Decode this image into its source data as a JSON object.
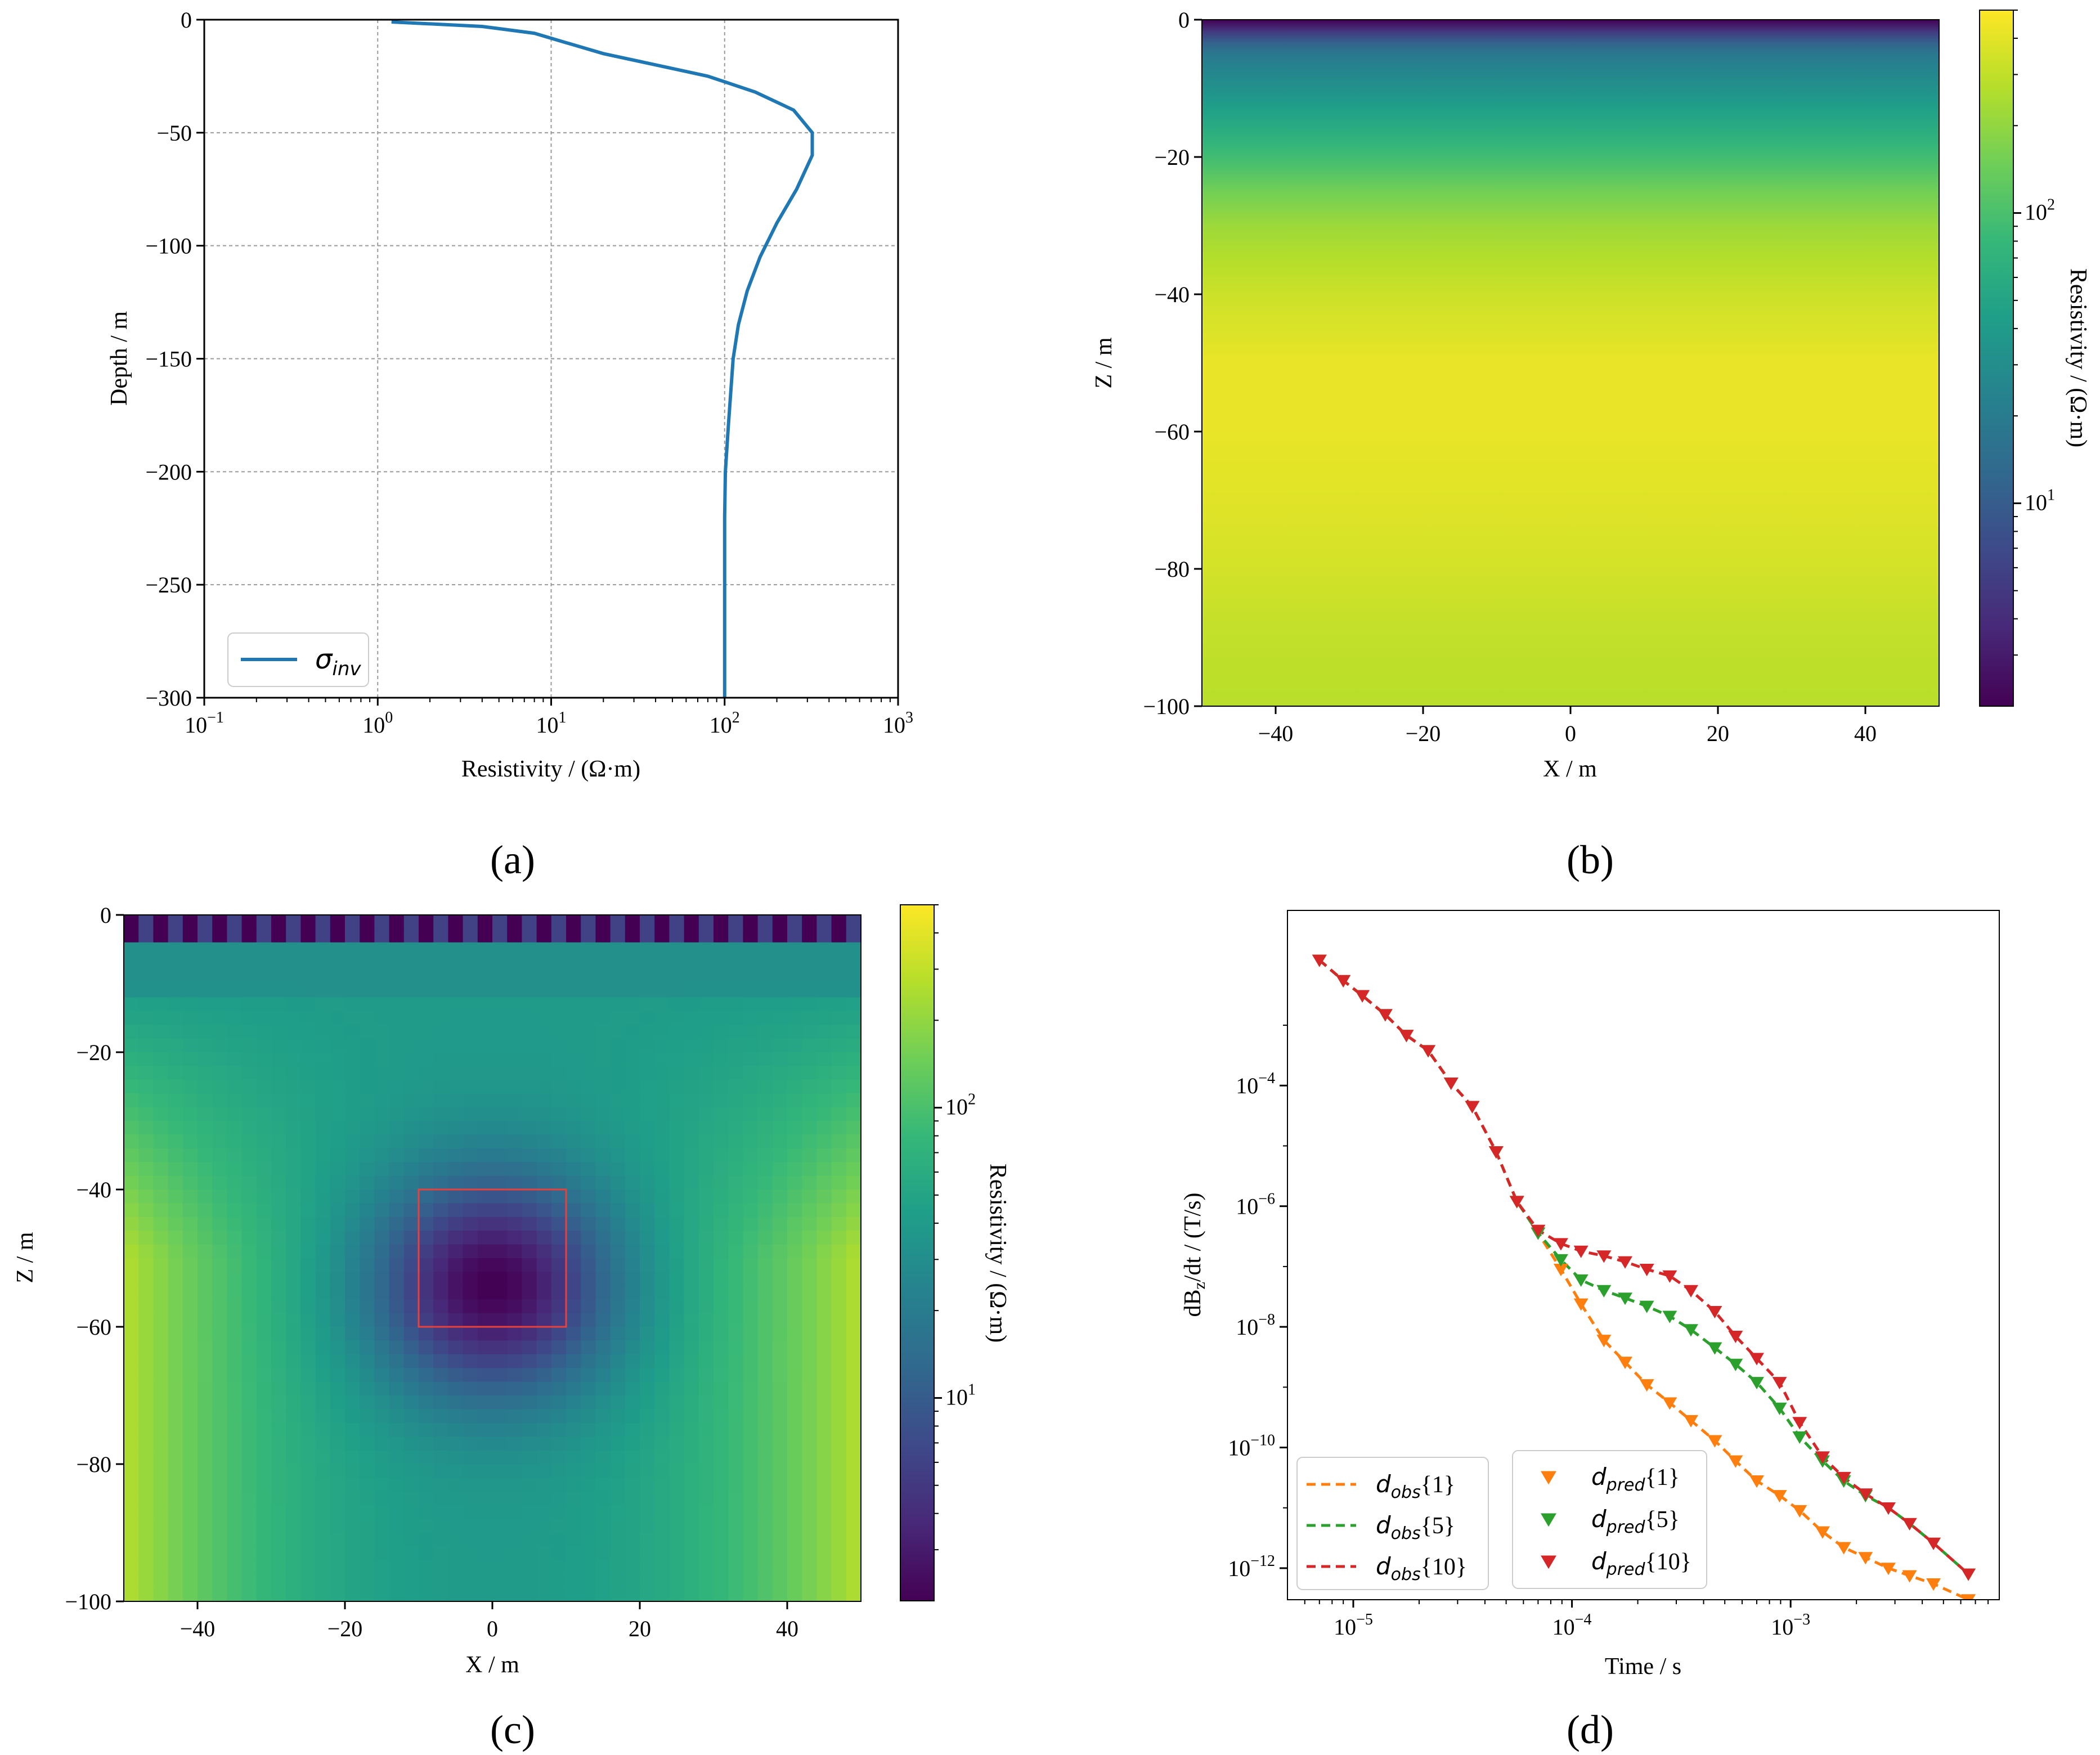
{
  "figure": {
    "panel_labels": [
      "(a)",
      "(b)",
      "(c)",
      "(d)"
    ]
  },
  "colors": {
    "inv_line": "#1f77b4",
    "obs1": "#ff7f0e",
    "obs5": "#2ca02c",
    "obs10": "#d62728",
    "box": "#e8403a",
    "grid": "#9a9a9a",
    "viridis": [
      "#440154",
      "#482878",
      "#3e4989",
      "#31688e",
      "#26828e",
      "#1f9e89",
      "#35b779",
      "#6ece58",
      "#b5de2b",
      "#fde725"
    ]
  },
  "chart_data": [
    {
      "id": "a",
      "type": "line",
      "xlabel": "Resistivity / (Ω·m)",
      "ylabel": "Depth / m",
      "xscale": "log",
      "xlim": [
        0.1,
        1000
      ],
      "ylim": [
        -300,
        0
      ],
      "xtick_exponents": [
        "-1",
        "0",
        "1",
        "2",
        "3"
      ],
      "yticks": [
        0,
        -50,
        -100,
        -150,
        -200,
        -250,
        -300
      ],
      "ytick_labels": [
        "0",
        "−50",
        "−100",
        "−150",
        "−200",
        "−250",
        "−300"
      ],
      "grid": true,
      "legend": "lower-left",
      "series": [
        {
          "name": "σ_inv",
          "legend_main": "σ",
          "legend_sub": "inv",
          "resistivity": [
            1.2,
            4,
            8,
            12,
            20,
            40,
            80,
            150,
            250,
            320,
            320,
            260,
            200,
            160,
            135,
            120,
            112,
            105,
            101,
            100,
            100,
            100,
            100
          ],
          "depth": [
            -1,
            -3,
            -6,
            -10,
            -15,
            -20,
            -25,
            -32,
            -40,
            -50,
            -60,
            -75,
            -90,
            -105,
            -120,
            -135,
            -150,
            -180,
            -200,
            -220,
            -250,
            -280,
            -300
          ]
        }
      ]
    },
    {
      "id": "b",
      "type": "heatmap",
      "xlabel": "X / m",
      "ylabel": "Z / m",
      "xlim": [
        -50,
        50
      ],
      "ylim": [
        -100,
        0
      ],
      "xticks": [
        -40,
        -20,
        0,
        20,
        40
      ],
      "xtick_labels": [
        "−40",
        "−20",
        "0",
        "20",
        "40"
      ],
      "yticks": [
        0,
        -20,
        -40,
        -60,
        -80,
        -100
      ],
      "ytick_labels": [
        "0",
        "−20",
        "−40",
        "−60",
        "−80",
        "−100"
      ],
      "colorbar_label": "Resistivity / (Ω·m)",
      "colorbar_scale": "log",
      "colorbar_range": [
        2,
        500
      ],
      "colorbar_tick_exponents": [
        "1",
        "2"
      ],
      "colorbar_tick_values": [
        10,
        100
      ],
      "depth_profile": {
        "depth": [
          0,
          -2,
          -4,
          -6,
          -10,
          -15,
          -20,
          -25,
          -30,
          -40,
          -50,
          -60,
          -70,
          -80,
          -90,
          -100
        ],
        "resistivity": [
          2,
          6,
          15,
          22,
          32,
          55,
          90,
          150,
          220,
          330,
          420,
          420,
          390,
          350,
          300,
          280
        ]
      }
    },
    {
      "id": "c",
      "type": "heatmap",
      "xlabel": "X / m",
      "ylabel": "Z / m",
      "xlim": [
        -50,
        50
      ],
      "ylim": [
        -100,
        0
      ],
      "xticks": [
        -40,
        -20,
        0,
        20,
        40
      ],
      "xtick_labels": [
        "−40",
        "−20",
        "0",
        "20",
        "40"
      ],
      "yticks": [
        0,
        -20,
        -40,
        -60,
        -80,
        -100
      ],
      "ytick_labels": [
        "0",
        "−20",
        "−40",
        "−60",
        "−80",
        "−100"
      ],
      "colorbar_label": "Resistivity / (Ω·m)",
      "colorbar_scale": "log",
      "colorbar_range": [
        2,
        500
      ],
      "colorbar_tick_exponents": [
        "1",
        "2"
      ],
      "colorbar_tick_values": [
        10,
        100
      ],
      "grid_cells": [
        50,
        50
      ],
      "surface_layer": {
        "depth_to": -5,
        "resistivity_low": 2,
        "resistivity_high": 6
      },
      "background_resistivity": 40,
      "side_resistivity": 300,
      "anomaly": {
        "center": [
          0,
          -54
        ],
        "min_resistivity": 2,
        "radius": 16
      },
      "target_box": {
        "x": [
          -10,
          10
        ],
        "z": [
          -60,
          -40
        ]
      }
    },
    {
      "id": "d",
      "type": "line",
      "xlabel": "Time / s",
      "ylabel": "dB",
      "ylabel_sub": "z",
      "ylabel_tail": "/dt / (T/s)",
      "xscale": "log",
      "yscale": "log",
      "xlim": [
        5e-06,
        0.009
      ],
      "ylim": [
        3e-13,
        0.08
      ],
      "xtick_exponents": [
        "-5",
        "-4",
        "-3"
      ],
      "ytick_exponents": [
        "-4",
        "-6",
        "-8",
        "-10",
        "-12"
      ],
      "ytick_values": [
        0.0001,
        1e-06,
        1e-08,
        1e-10,
        1e-12
      ],
      "time": [
        7e-06,
        9e-06,
        1.1e-05,
        1.4e-05,
        1.75e-05,
        2.2e-05,
        2.8e-05,
        3.5e-05,
        4.5e-05,
        5.6e-05,
        7e-05,
        8.9e-05,
        0.00011,
        0.00014,
        0.000175,
        0.00022,
        0.00028,
        0.00035,
        0.00045,
        0.00056,
        0.0007,
        0.00089,
        0.0011,
        0.0014,
        0.00175,
        0.0022,
        0.0028,
        0.0035,
        0.0045,
        0.0065
      ],
      "series": [
        {
          "name": "d_obs{1}",
          "main": "d",
          "sub": "obs",
          "tail": "{1}",
          "kind": "dashed",
          "color_key": "obs1",
          "values": [
            0.012,
            0.0055,
            0.0031,
            0.0015,
            0.00068,
            0.00038,
            0.00011,
            4.5e-05,
            8e-06,
            1.2e-06,
            3.6e-07,
            9e-08,
            2.4e-08,
            6e-09,
            2.6e-09,
            1.1e-09,
            5.5e-10,
            2.8e-10,
            1.3e-10,
            6e-11,
            2.8e-11,
            1.6e-11,
            9e-12,
            4e-12,
            2.2e-12,
            1.5e-12,
            1e-12,
            7.5e-13,
            5.5e-13,
            3e-13
          ]
        },
        {
          "name": "d_obs{5}",
          "main": "d",
          "sub": "obs",
          "tail": "{5}",
          "kind": "dashed",
          "color_key": "obs5",
          "values": [
            0.012,
            0.0055,
            0.0031,
            0.0015,
            0.00068,
            0.00038,
            0.00011,
            4.5e-05,
            8e-06,
            1.2e-06,
            3.6e-07,
            1.3e-07,
            6e-08,
            4e-08,
            3e-08,
            2.2e-08,
            1.5e-08,
            9e-09,
            4.5e-09,
            2.4e-09,
            1.2e-09,
            4.5e-10,
            1.5e-10,
            6e-11,
            2.8e-11,
            1.6e-11,
            1e-11,
            5.5e-12,
            2.6e-12,
            8e-13
          ]
        },
        {
          "name": "d_obs{10}",
          "main": "d",
          "sub": "obs",
          "tail": "{10}",
          "kind": "dashed",
          "color_key": "obs10",
          "values": [
            0.012,
            0.0055,
            0.0031,
            0.0015,
            0.00068,
            0.00038,
            0.00011,
            4.5e-05,
            8e-06,
            1.2e-06,
            4e-07,
            2.4e-07,
            1.8e-07,
            1.5e-07,
            1.2e-07,
            9e-08,
            7e-08,
            4e-08,
            1.8e-08,
            7e-09,
            3e-09,
            1.2e-09,
            2.6e-10,
            7e-11,
            3.2e-11,
            1.7e-11,
            1e-11,
            5.5e-12,
            2.6e-12,
            8e-13
          ]
        },
        {
          "name": "d_pred{1}",
          "main": "d",
          "sub": "pred",
          "tail": "{1}",
          "kind": "markers",
          "color_key": "obs1",
          "values": [
            0.012,
            0.0055,
            0.0031,
            0.0015,
            0.00068,
            0.00038,
            0.00011,
            4.5e-05,
            8e-06,
            1.2e-06,
            3.6e-07,
            9e-08,
            2.4e-08,
            6e-09,
            2.6e-09,
            1.1e-09,
            5.5e-10,
            2.8e-10,
            1.3e-10,
            6e-11,
            2.8e-11,
            1.6e-11,
            9e-12,
            4e-12,
            2.2e-12,
            1.5e-12,
            1e-12,
            7.5e-13,
            5.5e-13,
            3e-13
          ]
        },
        {
          "name": "d_pred{5}",
          "main": "d",
          "sub": "pred",
          "tail": "{5}",
          "kind": "markers",
          "color_key": "obs5",
          "values": [
            0.012,
            0.0055,
            0.0031,
            0.0015,
            0.00068,
            0.00038,
            0.00011,
            4.5e-05,
            8e-06,
            1.2e-06,
            3.6e-07,
            1.3e-07,
            6e-08,
            4e-08,
            3e-08,
            2.2e-08,
            1.5e-08,
            9e-09,
            4.5e-09,
            2.4e-09,
            1.2e-09,
            4.5e-10,
            1.5e-10,
            6e-11,
            2.8e-11,
            1.6e-11,
            1e-11,
            5.5e-12,
            2.6e-12,
            8e-13
          ]
        },
        {
          "name": "d_pred{10}",
          "main": "d",
          "sub": "pred",
          "tail": "{10}",
          "kind": "markers",
          "color_key": "obs10",
          "values": [
            0.012,
            0.0055,
            0.0031,
            0.0015,
            0.00068,
            0.00038,
            0.00011,
            4.5e-05,
            8e-06,
            1.2e-06,
            4e-07,
            2.4e-07,
            1.8e-07,
            1.5e-07,
            1.2e-07,
            9e-08,
            7e-08,
            4e-08,
            1.8e-08,
            7e-09,
            3e-09,
            1.2e-09,
            2.6e-10,
            7e-11,
            3.2e-11,
            1.7e-11,
            1e-11,
            5.5e-12,
            2.6e-12,
            8e-13
          ]
        }
      ]
    }
  ]
}
